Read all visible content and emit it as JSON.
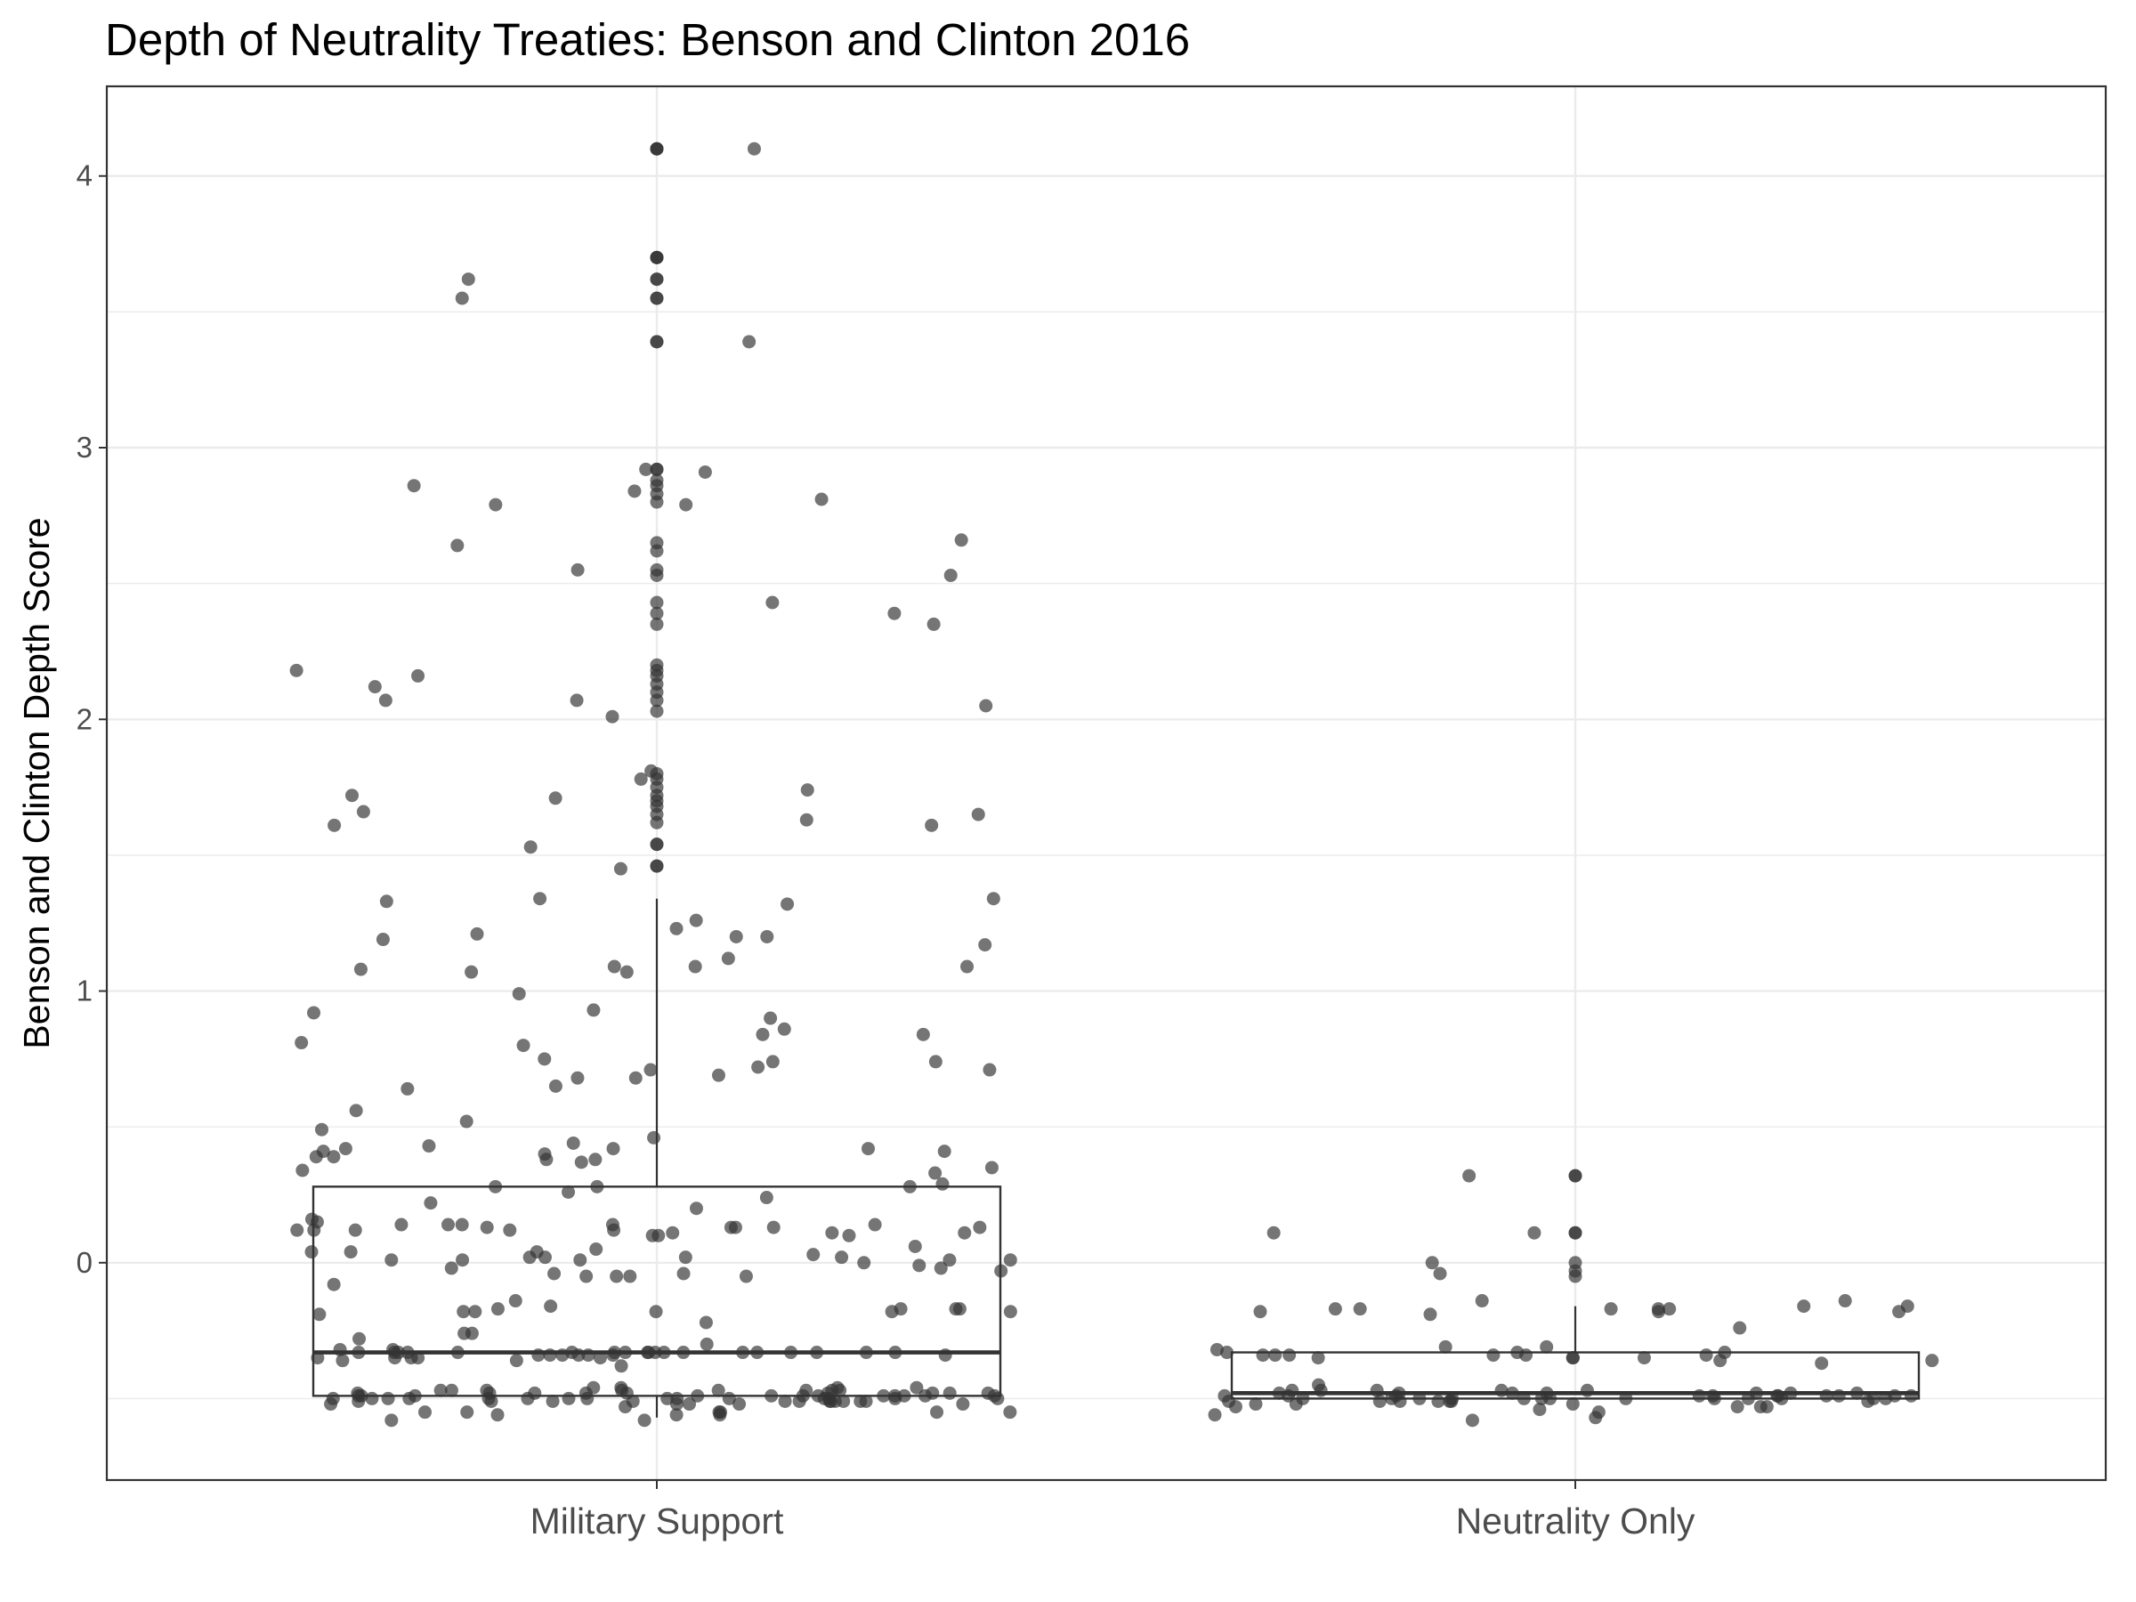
{
  "chart_data": {
    "type": "boxplot",
    "title": "Depth of Neutrality Treaties: Benson and Clinton 2016",
    "xlabel": "",
    "ylabel": "Benson and Clinton Depth Score",
    "ylim": [
      -0.8,
      4.33
    ],
    "yticks": [
      0,
      1,
      2,
      3,
      4
    ],
    "grid": true,
    "colors": {
      "point": "#333333",
      "box": "#333333",
      "grid": "#ebebeb",
      "panel_border": "#333333"
    },
    "categories": [
      "Military Support",
      "Neutrality Only"
    ],
    "boxes": [
      {
        "category": "Military Support",
        "min": -0.57,
        "q1": -0.49,
        "median": -0.33,
        "q3": 0.28,
        "max": 1.34
      },
      {
        "category": "Neutrality Only",
        "min": -0.5,
        "q1": -0.5,
        "median": -0.48,
        "q3": -0.33,
        "max": -0.16
      }
    ],
    "points": [
      {
        "category": "Military Support",
        "y": [
          4.1,
          4.1,
          4.1,
          3.7,
          3.7,
          3.7,
          3.62,
          3.62,
          3.55,
          3.55,
          3.39,
          3.39,
          2.92,
          2.92,
          2.88,
          2.86,
          2.83,
          2.8,
          2.65,
          2.62,
          2.55,
          2.53,
          2.43,
          2.39,
          2.35,
          2.2,
          2.18,
          2.16,
          2.13,
          2.1,
          2.07,
          2.03,
          1.8,
          1.78,
          1.75,
          1.72,
          1.7,
          1.68,
          1.65,
          1.62,
          1.54,
          1.54,
          1.46,
          1.46,
          3.62,
          2.35,
          0.68,
          0.52,
          0.13,
          -0.48,
          -0.51,
          1.2,
          -0.33,
          -0.33,
          -0.46,
          -0.49,
          -0.52,
          0.93,
          1.32,
          0.84,
          1.17,
          1.53,
          2.01,
          0.46,
          0.14,
          -0.17,
          -0.38,
          -0.34,
          -0.47,
          -0.55,
          0.11,
          0.01,
          -0.51,
          0.1,
          0.06,
          -0.49,
          0.11,
          -0.46,
          -0.51,
          0.72,
          1.26,
          0.92,
          0.02,
          -0.04,
          -0.02,
          0.01,
          -0.33,
          -0.48,
          -0.5,
          2.05,
          0.81,
          0.65,
          0.69,
          1.09,
          1.08,
          -0.18,
          -0.33,
          -0.49,
          -0.56,
          2.84,
          1.33,
          0.42,
          0.29,
          0.13,
          0.12,
          -0.33,
          -0.47,
          -0.51,
          2.43,
          0.84,
          0.14,
          -0.5,
          -0.35,
          0.41,
          0.12,
          0.04,
          -0.04,
          -0.33,
          -0.49,
          0.14,
          0.1,
          -0.08,
          -0.17,
          -0.33,
          -0.36,
          -0.51,
          0.01,
          0.12,
          -0.33,
          -0.35,
          -0.49,
          0.12,
          -0.05,
          -0.33,
          -0.5,
          2.12,
          1.78,
          0.38,
          0.34,
          0.02,
          -0.47,
          -0.5,
          1.34,
          1.09,
          0.03,
          -0.33,
          -0.48,
          1.71,
          1.72,
          1.61,
          0.56,
          0.42,
          0.22,
          -0.14,
          -0.35,
          -0.5,
          0.42,
          0.26,
          0.02,
          0.01,
          -0.5,
          -0.35,
          1.19,
          0.41,
          0.13,
          -0.18,
          -0.48,
          -0.51,
          1.07,
          1.34,
          0.33,
          0.05,
          -0.33,
          -0.49,
          0.0,
          -0.17,
          -0.52,
          -0.55,
          4.1,
          2.39,
          0.12,
          0.04,
          -0.5,
          0.2,
          0.24,
          -0.34,
          -0.46,
          -0.51,
          0.1,
          -0.05,
          -0.48,
          -0.33,
          0.39,
          -0.34,
          -0.51,
          0.01,
          -0.49,
          0.64,
          0.86,
          2.16,
          -0.47,
          -0.52,
          0.8,
          0.16,
          -0.48,
          -0.5,
          0.49,
          2.07,
          0.43,
          0.9,
          -0.26,
          -0.51,
          -0.36,
          2.53,
          1.12,
          0.37,
          -0.49,
          -0.55,
          0.75,
          0.28,
          -0.02,
          -0.22,
          -0.48,
          2.86,
          2.92,
          1.21,
          -0.05,
          -0.33,
          -0.48,
          0.39,
          -0.32,
          -0.51,
          -0.53,
          1.09,
          -0.34,
          -0.5,
          -0.34,
          2.64,
          0.68,
          -0.19,
          -0.5,
          2.81,
          0.28,
          0.15,
          -0.33,
          -0.56,
          0.02,
          -0.18,
          -0.5,
          1.81,
          3.55,
          3.39,
          0.74,
          0.13,
          -0.33,
          1.65,
          0.14,
          -0.46,
          -0.51,
          0.14,
          -0.32,
          -0.49,
          -0.55,
          0.35,
          0.28,
          -0.16,
          -0.5,
          -0.35,
          -0.17,
          -0.33,
          -0.51,
          1.63,
          2.79,
          -0.47,
          -0.58,
          1.74,
          0.71,
          0.13,
          0.04,
          -0.34,
          -0.49,
          2.91,
          2.07,
          2.55,
          -0.18,
          -0.47,
          -0.56,
          1.23,
          1.2,
          0.44,
          -0.28,
          -0.33,
          -0.5,
          2.66,
          -0.47,
          -0.52,
          1.45,
          -0.01,
          -0.33,
          -0.49,
          -0.55,
          0.4,
          -0.18,
          -0.26,
          -0.5,
          -0.34,
          0.38,
          -0.03,
          -0.49,
          -0.52,
          2.79,
          1.61,
          -0.05,
          -0.5,
          -0.58,
          0.99,
          1.07,
          0.11,
          -0.3,
          -0.47,
          -0.55,
          0.74,
          0.71,
          1.66,
          2.18,
          -0.33,
          -0.48
        ]
      },
      {
        "category": "Neutrality Only",
        "y": [
          0.32,
          0.32,
          0.11,
          0.11,
          0.0,
          -0.03,
          -0.05,
          -0.16,
          -0.14,
          -0.17,
          -0.32,
          -0.37,
          -0.36,
          -0.49,
          -0.48,
          -0.5,
          -0.5,
          -0.51,
          -0.51,
          -0.18,
          -0.18,
          -0.17,
          -0.14,
          -0.19,
          -0.18,
          -0.35,
          -0.35,
          -0.34,
          -0.33,
          -0.49,
          -0.5,
          -0.5,
          -0.51,
          -0.52,
          -0.51,
          -0.52,
          -0.55,
          -0.57,
          -0.49,
          -0.48,
          0.32,
          0.11,
          -0.45,
          -0.47,
          -0.5,
          -0.52,
          -0.51,
          -0.49,
          -0.48,
          -0.04,
          -0.16,
          -0.31,
          -0.47,
          -0.48,
          -0.49,
          -0.58,
          -0.5,
          -0.5,
          -0.49,
          -0.49,
          -0.48,
          -0.17,
          -0.34,
          -0.48,
          -0.49,
          -0.47,
          -0.35,
          -0.33,
          -0.47,
          -0.49,
          -0.5,
          -0.17,
          -0.24,
          -0.34,
          -0.5,
          -0.53,
          -0.34,
          -0.47,
          -0.5,
          -0.56,
          -0.54,
          -0.53,
          -0.31,
          -0.53,
          -0.35,
          0.11,
          -0.17,
          -0.33,
          -0.5,
          -0.5,
          -0.36,
          -0.53,
          -0.34,
          -0.49,
          -0.48,
          -0.5,
          -0.51,
          0.0,
          -0.34,
          -0.51,
          -0.49
        ]
      }
    ]
  }
}
